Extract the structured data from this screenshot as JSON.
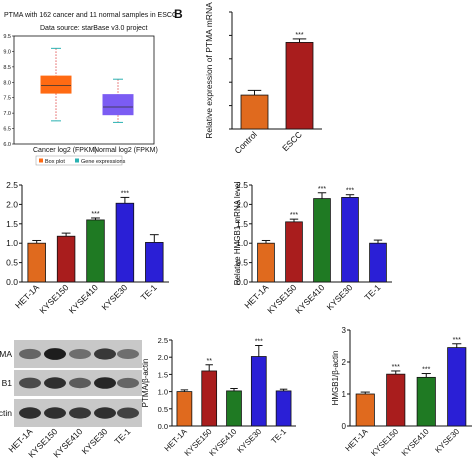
{
  "panel_label": "B",
  "colors": {
    "orange": "#e06a1e",
    "red": "#a91d1d",
    "green": "#1f7a23",
    "blue": "#2a1fd6",
    "axis": "#111111",
    "box_cancer": "#ff6a13",
    "box_normal": "#7b5cf3"
  },
  "chart_data": [
    {
      "id": "A_boxplot",
      "type": "box",
      "title": "PTMA with 162 cancer and 11 normal samples in ESCC",
      "subtitle": "Data source: starBase v3.0 project",
      "categories": [
        "Cancer log2 (FPKM)",
        "Normal log2 (FPKM)"
      ],
      "box_stats": [
        {
          "name": "Cancer log2 (FPKM)",
          "min": 6.75,
          "q1": 7.65,
          "median": 7.9,
          "q3": 8.2,
          "max": 9.1
        },
        {
          "name": "Normal log2 (FPKM)",
          "min": 6.7,
          "q1": 6.95,
          "median": 7.2,
          "q3": 7.6,
          "max": 8.1
        }
      ],
      "ylim": [
        6.0,
        9.5
      ],
      "yticks": [
        "6.0",
        "6.5",
        "7.0",
        "7.5",
        "8.0",
        "8.5",
        "9.0",
        "9.5"
      ],
      "legend": [
        "Box plot",
        "Gene expressions"
      ]
    },
    {
      "id": "B_ptma_mrna",
      "type": "bar",
      "categories": [
        "Control",
        "ESCC"
      ],
      "values": [
        1.45,
        3.7
      ],
      "errors": [
        0.2,
        0.15
      ],
      "significance": [
        "",
        "***"
      ],
      "ylabel": "Relative expression of PTMA mRNA",
      "ylim": [
        0,
        5
      ]
    },
    {
      "id": "C_ptma_lines",
      "type": "bar",
      "categories": [
        "HET-1A",
        "KYSE150",
        "KYSE410",
        "KYSE30",
        "TE-1"
      ],
      "values": [
        1.0,
        1.18,
        1.6,
        2.03,
        1.02
      ],
      "errors": [
        0.07,
        0.08,
        0.05,
        0.15,
        0.2
      ],
      "significance": [
        "",
        "",
        "***",
        "***",
        ""
      ],
      "yticks": [
        "0.0",
        "0.5",
        "1.0",
        "1.5",
        "2.0",
        "2.5"
      ],
      "ylim": [
        0,
        2.5
      ]
    },
    {
      "id": "D_hmgb1_mrna",
      "type": "bar",
      "categories": [
        "HET-1A",
        "KYSE150",
        "KYSE410",
        "KYSE30",
        "TE-1"
      ],
      "values": [
        1.0,
        1.55,
        2.15,
        2.18,
        1.0
      ],
      "errors": [
        0.07,
        0.07,
        0.15,
        0.07,
        0.08
      ],
      "significance": [
        "",
        "***",
        "***",
        "***",
        ""
      ],
      "ylabel": "Relative HMGB1 mRNA level",
      "yticks": [
        "0.0",
        "0.5",
        "1.0",
        "1.5",
        "2.0",
        "2.5"
      ],
      "ylim": [
        0,
        2.5
      ]
    },
    {
      "id": "E_western",
      "type": "blot",
      "row_labels": [
        "MA",
        "B1",
        "actin"
      ],
      "lanes": [
        "HET-1A",
        "KYSE150",
        "KYSE410",
        "KYSE30",
        "TE-1"
      ]
    },
    {
      "id": "F_ptma_protein",
      "type": "bar",
      "categories": [
        "HET-1A",
        "KYSE150",
        "KYSE410",
        "KYSE30",
        "TE-1"
      ],
      "values": [
        1.0,
        1.6,
        1.02,
        2.02,
        1.02
      ],
      "errors": [
        0.05,
        0.18,
        0.07,
        0.32,
        0.05
      ],
      "significance": [
        "",
        "**",
        "",
        "***",
        ""
      ],
      "ylabel": "PTMA/β-actin",
      "yticks": [
        "0.0",
        "0.5",
        "1.0",
        "1.5",
        "2.0",
        "2.5"
      ],
      "ylim": [
        0,
        2.5
      ]
    },
    {
      "id": "G_hmgb1_protein",
      "type": "bar",
      "categories": [
        "HET-1A",
        "KYSE150",
        "KYSE410",
        "KYSE30"
      ],
      "values": [
        1.0,
        1.62,
        1.52,
        2.45
      ],
      "errors": [
        0.06,
        0.1,
        0.12,
        0.12
      ],
      "significance": [
        "",
        "***",
        "***",
        "***"
      ],
      "ylabel": "HMGB1/β-actin",
      "yticks": [
        "0",
        "1",
        "2",
        "3"
      ],
      "ylim": [
        0,
        3
      ]
    }
  ]
}
